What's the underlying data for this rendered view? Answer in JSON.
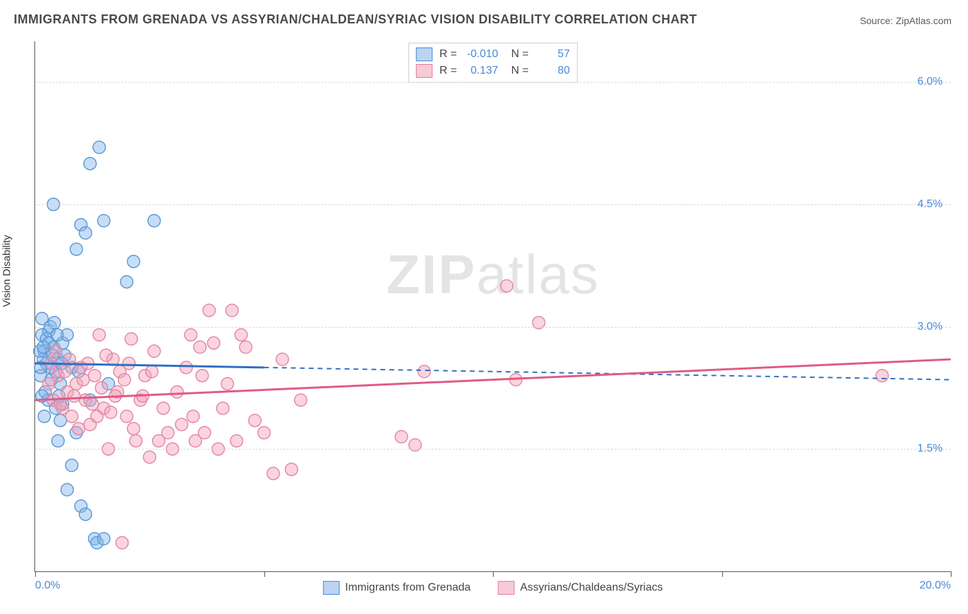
{
  "title": "IMMIGRANTS FROM GRENADA VS ASSYRIAN/CHALDEAN/SYRIAC VISION DISABILITY CORRELATION CHART",
  "source": "Source: ZipAtlas.com",
  "ylabel": "Vision Disability",
  "watermark_bold": "ZIP",
  "watermark_light": "atlas",
  "chart": {
    "type": "scatter",
    "background_color": "#ffffff",
    "grid_color": "#d8d8d8",
    "axis_color": "#555555",
    "label_color": "#4a88d8",
    "xlim": [
      0,
      20
    ],
    "ylim": [
      0,
      6.5
    ],
    "xticks": [
      0,
      5,
      10,
      15,
      20
    ],
    "xtick_labels": [
      "0.0%",
      "",
      "",
      "",
      "20.0%"
    ],
    "yticks": [
      1.5,
      3.0,
      4.5,
      6.0
    ],
    "ytick_labels": [
      "1.5%",
      "3.0%",
      "4.5%",
      "6.0%"
    ],
    "marker_radius": 9,
    "marker_stroke_width": 1.5,
    "trend_line_width": 3,
    "trend_dash": "7,6",
    "series": [
      {
        "name": "Immigrants from Grenada",
        "color_fill": "rgba(130,180,235,0.45)",
        "color_stroke": "#5d9ad6",
        "trend_color": "#2f6fc0",
        "R": "-0.010",
        "N": "57",
        "trend_solid_xrange": [
          0,
          5
        ],
        "trend_y_at_x0": 2.55,
        "trend_y_at_xmax": 2.35,
        "points": [
          [
            0.15,
            2.9
          ],
          [
            0.2,
            2.7
          ],
          [
            0.25,
            2.85
          ],
          [
            0.3,
            2.95
          ],
          [
            0.18,
            2.6
          ],
          [
            0.35,
            2.5
          ],
          [
            0.12,
            2.4
          ],
          [
            0.4,
            2.75
          ],
          [
            0.22,
            2.2
          ],
          [
            0.28,
            2.1
          ],
          [
            0.45,
            2.0
          ],
          [
            0.5,
            2.6
          ],
          [
            0.55,
            2.3
          ],
          [
            0.6,
            2.8
          ],
          [
            0.33,
            3.0
          ],
          [
            0.15,
            3.1
          ],
          [
            0.7,
            2.9
          ],
          [
            0.8,
            2.5
          ],
          [
            0.9,
            1.7
          ],
          [
            1.0,
            0.8
          ],
          [
            1.1,
            0.7
          ],
          [
            1.3,
            0.4
          ],
          [
            1.35,
            0.35
          ],
          [
            1.5,
            0.4
          ],
          [
            1.4,
            5.2
          ],
          [
            1.2,
            5.0
          ],
          [
            1.0,
            4.25
          ],
          [
            1.1,
            4.15
          ],
          [
            1.5,
            4.3
          ],
          [
            2.0,
            3.55
          ],
          [
            2.15,
            3.8
          ],
          [
            2.6,
            4.3
          ],
          [
            0.4,
            4.5
          ],
          [
            0.9,
            3.95
          ],
          [
            0.5,
            1.6
          ],
          [
            0.7,
            1.0
          ],
          [
            0.8,
            1.3
          ],
          [
            1.6,
            2.3
          ],
          [
            0.6,
            2.05
          ],
          [
            0.35,
            2.35
          ],
          [
            0.25,
            2.55
          ],
          [
            0.45,
            2.45
          ],
          [
            0.15,
            2.15
          ],
          [
            0.2,
            1.9
          ],
          [
            0.55,
            1.85
          ],
          [
            0.3,
            2.8
          ],
          [
            0.38,
            2.65
          ],
          [
            0.48,
            2.9
          ],
          [
            0.1,
            2.7
          ],
          [
            0.12,
            2.5
          ],
          [
            0.65,
            2.65
          ],
          [
            0.42,
            3.05
          ],
          [
            0.52,
            2.15
          ],
          [
            0.18,
            2.75
          ],
          [
            0.58,
            2.55
          ],
          [
            0.95,
            2.45
          ],
          [
            1.2,
            2.1
          ]
        ]
      },
      {
        "name": "Assyrians/Chaldeans/Syriacs",
        "color_fill": "rgba(245,160,185,0.45)",
        "color_stroke": "#e389a5",
        "trend_color": "#e05a85",
        "R": "0.137",
        "N": "80",
        "trend_solid_xrange": [
          0,
          20
        ],
        "trend_y_at_x0": 2.1,
        "trend_y_at_xmax": 2.6,
        "points": [
          [
            0.3,
            2.3
          ],
          [
            0.4,
            2.1
          ],
          [
            0.5,
            2.4
          ],
          [
            0.6,
            2.0
          ],
          [
            0.7,
            2.2
          ],
          [
            0.8,
            1.9
          ],
          [
            0.9,
            2.3
          ],
          [
            1.0,
            2.5
          ],
          [
            1.1,
            2.1
          ],
          [
            1.2,
            1.8
          ],
          [
            1.3,
            2.4
          ],
          [
            1.4,
            2.9
          ],
          [
            1.5,
            2.0
          ],
          [
            1.6,
            1.5
          ],
          [
            1.7,
            2.6
          ],
          [
            1.8,
            2.2
          ],
          [
            1.9,
            0.35
          ],
          [
            2.0,
            1.9
          ],
          [
            2.1,
            2.85
          ],
          [
            2.2,
            1.6
          ],
          [
            2.3,
            2.1
          ],
          [
            2.4,
            2.4
          ],
          [
            2.5,
            1.4
          ],
          [
            2.6,
            2.7
          ],
          [
            2.7,
            1.6
          ],
          [
            2.8,
            2.0
          ],
          [
            2.9,
            1.7
          ],
          [
            3.0,
            1.5
          ],
          [
            3.1,
            2.2
          ],
          [
            3.2,
            1.8
          ],
          [
            3.3,
            2.5
          ],
          [
            3.4,
            2.9
          ],
          [
            3.5,
            1.6
          ],
          [
            3.6,
            2.75
          ],
          [
            3.7,
            1.7
          ],
          [
            3.8,
            3.2
          ],
          [
            3.9,
            2.8
          ],
          [
            4.0,
            1.5
          ],
          [
            4.1,
            2.0
          ],
          [
            4.2,
            2.3
          ],
          [
            4.4,
            1.6
          ],
          [
            4.6,
            2.75
          ],
          [
            4.8,
            1.85
          ],
          [
            5.0,
            1.7
          ],
          [
            5.2,
            1.2
          ],
          [
            5.4,
            2.6
          ],
          [
            5.6,
            1.25
          ],
          [
            5.8,
            2.1
          ],
          [
            4.3,
            3.2
          ],
          [
            4.5,
            2.9
          ],
          [
            0.35,
            2.55
          ],
          [
            0.45,
            2.7
          ],
          [
            0.55,
            2.05
          ],
          [
            0.65,
            2.45
          ],
          [
            0.75,
            2.6
          ],
          [
            0.85,
            2.15
          ],
          [
            0.95,
            1.75
          ],
          [
            1.05,
            2.35
          ],
          [
            1.15,
            2.55
          ],
          [
            1.25,
            2.05
          ],
          [
            1.35,
            1.9
          ],
          [
            1.45,
            2.25
          ],
          [
            1.55,
            2.65
          ],
          [
            1.65,
            1.95
          ],
          [
            1.75,
            2.15
          ],
          [
            1.85,
            2.45
          ],
          [
            1.95,
            2.35
          ],
          [
            3.45,
            1.9
          ],
          [
            3.65,
            2.4
          ],
          [
            8.0,
            1.65
          ],
          [
            8.5,
            2.45
          ],
          [
            8.3,
            1.55
          ],
          [
            10.5,
            2.35
          ],
          [
            10.3,
            3.5
          ],
          [
            11.0,
            3.05
          ],
          [
            18.5,
            2.4
          ],
          [
            2.05,
            2.55
          ],
          [
            2.15,
            1.75
          ],
          [
            2.35,
            2.15
          ],
          [
            2.55,
            2.45
          ]
        ]
      }
    ]
  },
  "legend_bottom": [
    {
      "swatch": "blue",
      "label": "Immigrants from Grenada"
    },
    {
      "swatch": "pink",
      "label": "Assyrians/Chaldeans/Syriacs"
    }
  ]
}
